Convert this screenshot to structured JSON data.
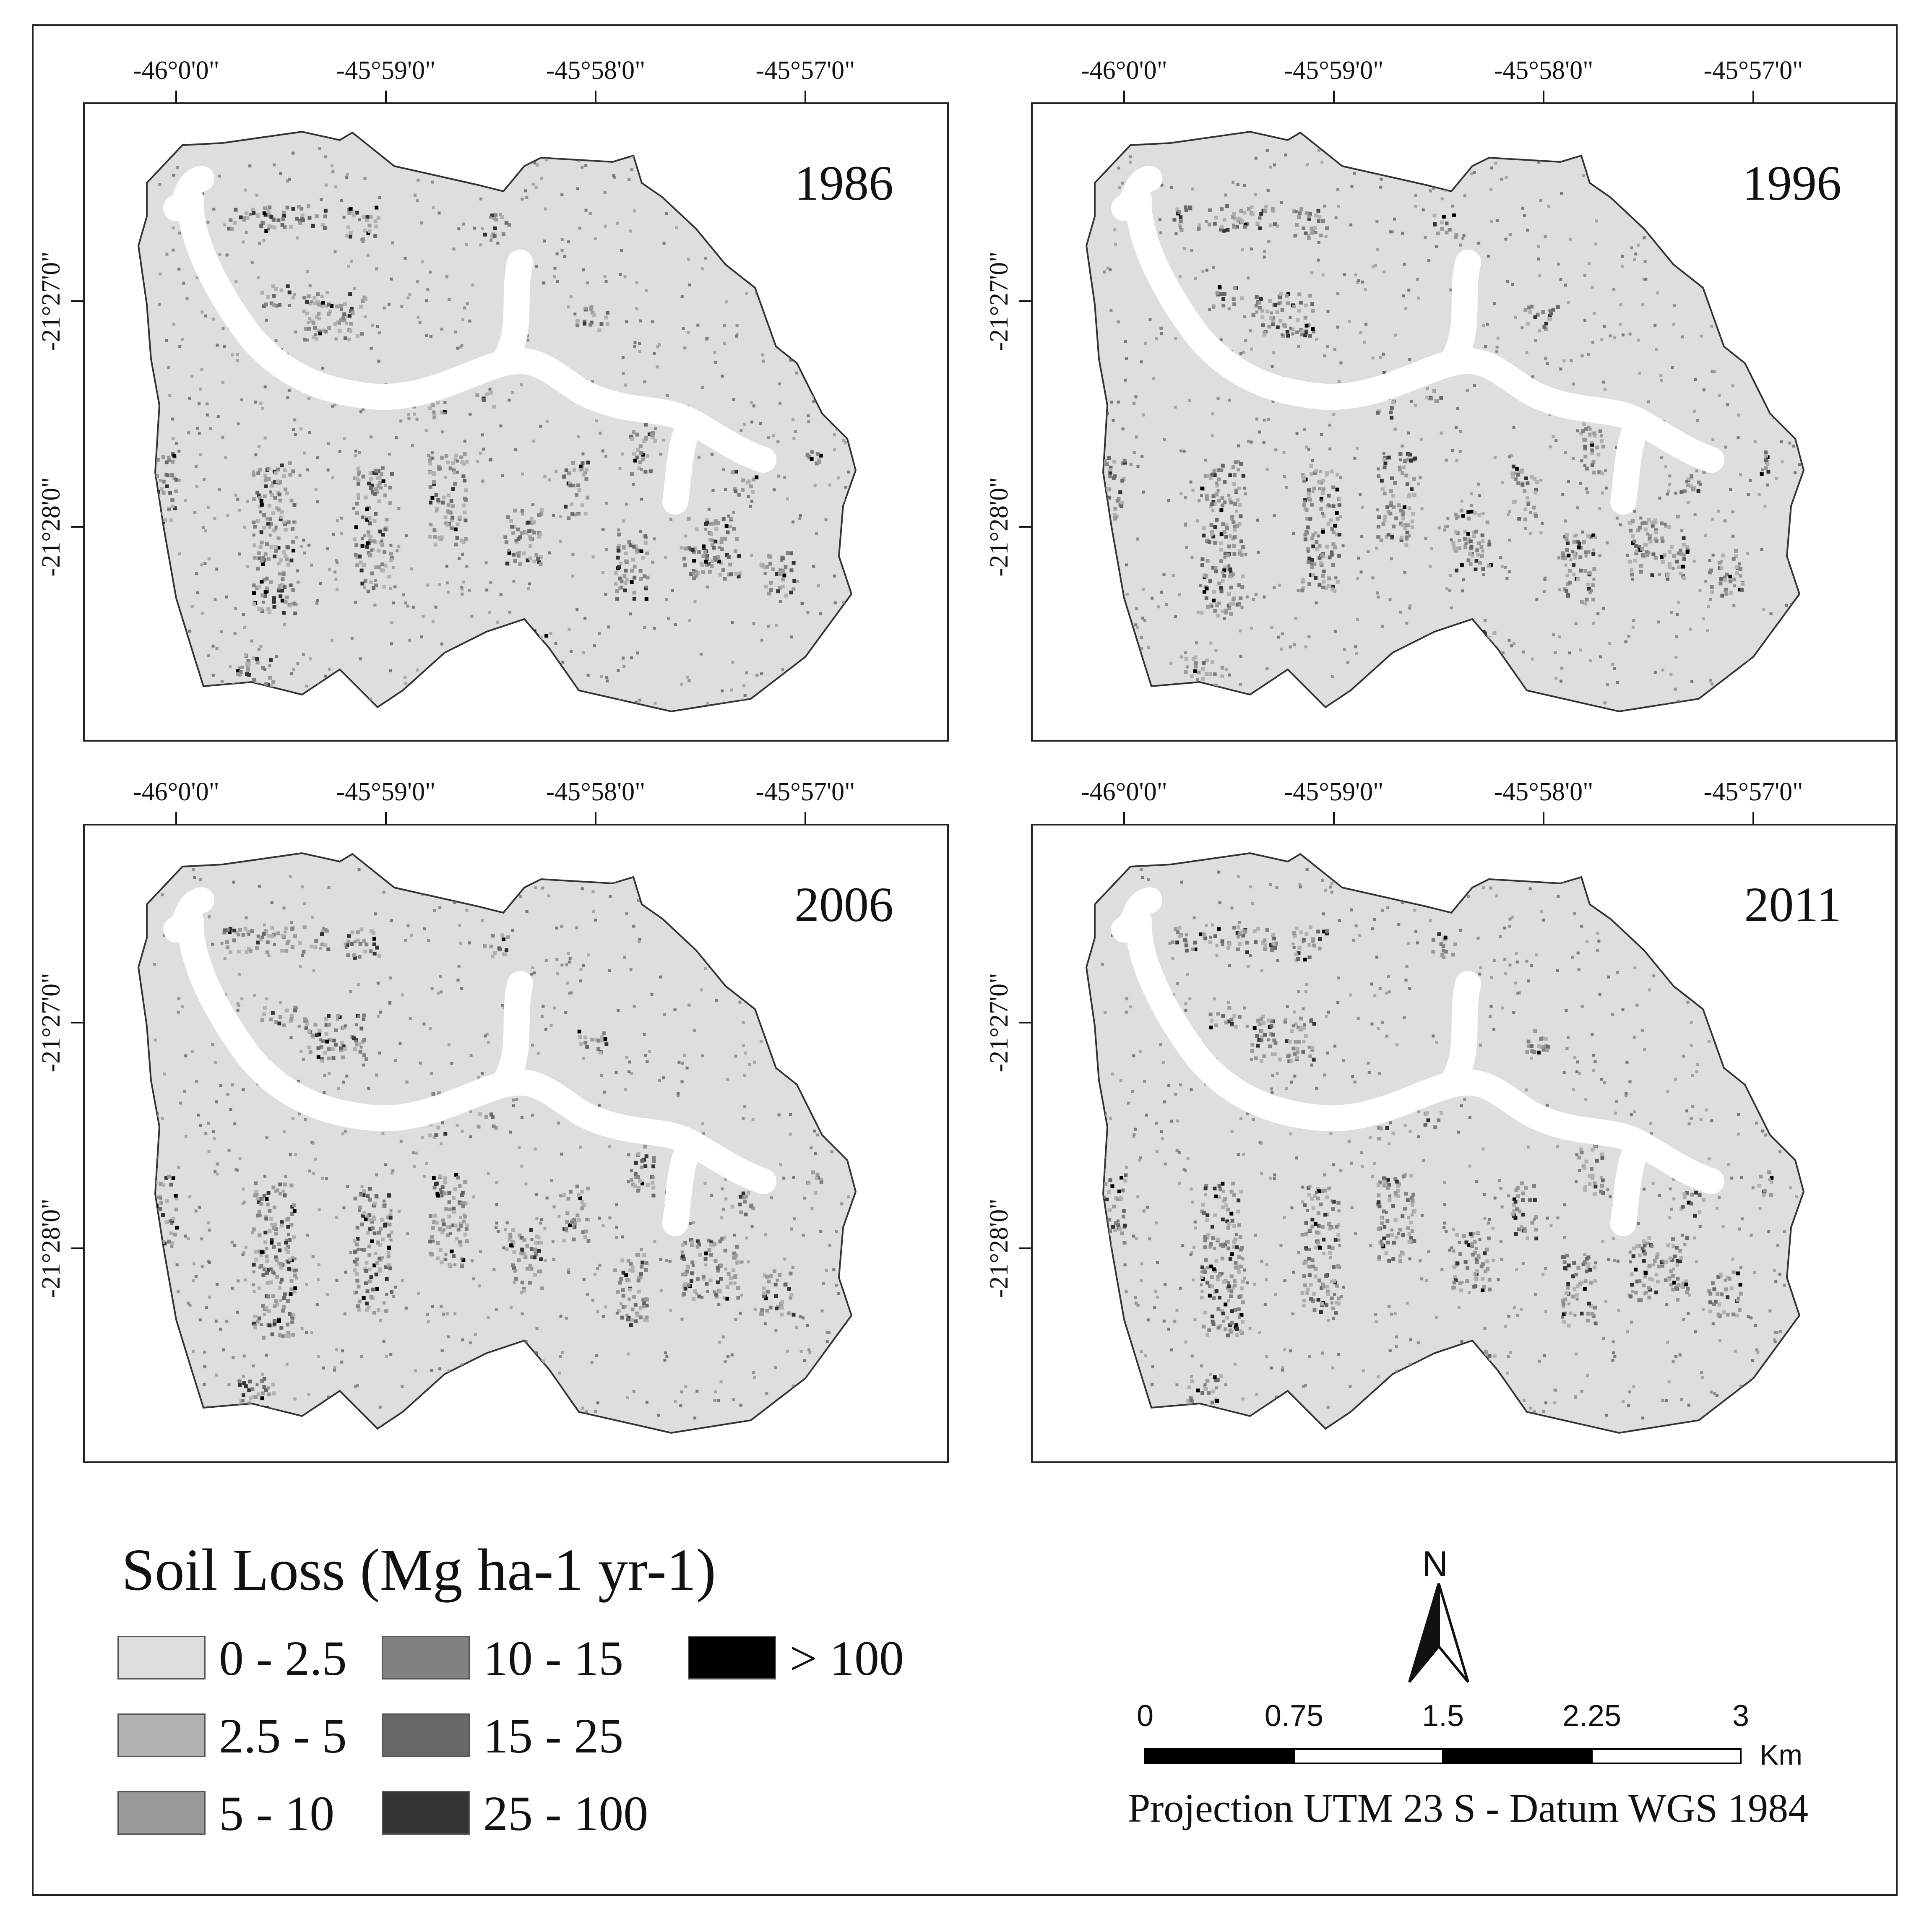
{
  "panels": [
    {
      "year": "1986",
      "col": 0,
      "row": 0
    },
    {
      "year": "1996",
      "col": 1,
      "row": 0
    },
    {
      "year": "2006",
      "col": 0,
      "row": 1
    },
    {
      "year": "2011",
      "col": 1,
      "row": 1
    }
  ],
  "lon_ticks": [
    "-46°0'0\"",
    "-45°59'0\"",
    "-45°58'0\"",
    "-45°57'0\""
  ],
  "lat_ticks": [
    "-21°27'0\"",
    "-21°28'0\""
  ],
  "legend": {
    "title": "Soil Loss (Mg ha-1 yr-1)",
    "classes": [
      {
        "label": "0 - 2.5",
        "color": "#dedede"
      },
      {
        "label": "2.5 - 5",
        "color": "#b1b1b1"
      },
      {
        "label": "5 - 10",
        "color": "#9a9a9a"
      },
      {
        "label": "10 - 15",
        "color": "#828282"
      },
      {
        "label": "15 - 25",
        "color": "#686868"
      },
      {
        "label": "25 - 100",
        "color": "#343434"
      },
      {
        "label": "> 100",
        "color": "#000000"
      }
    ]
  },
  "north_arrow": {
    "label": "N"
  },
  "scale_bar": {
    "ticks": [
      "0",
      "0.75",
      "1.5",
      "2.25",
      "3"
    ],
    "unit": "Km"
  },
  "projection": "Projection UTM 23 S - Datum WGS 1984"
}
